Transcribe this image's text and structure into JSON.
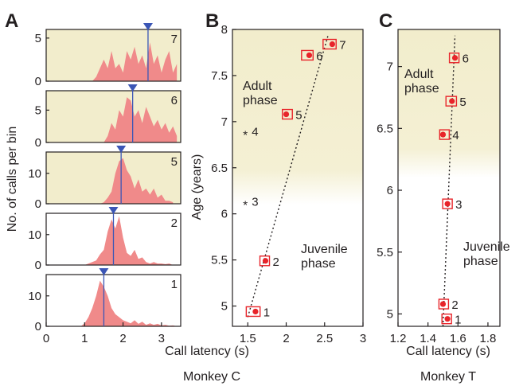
{
  "colors": {
    "adult_bg": "#f2edcc",
    "fill": "#f08a8a",
    "median": "#3b56b6",
    "box": "#e8242a",
    "dot": "#e8242a",
    "axis": "#231f20"
  },
  "chart_data": [
    {
      "panel": "A",
      "type": "area",
      "ylabel": "No. of calls per bin",
      "xlim": [
        0,
        3.5
      ],
      "x_ticks": [
        "0",
        "1",
        "2",
        "3"
      ],
      "note": "stacked histograms of call latency per age group",
      "histograms": [
        {
          "label": "7",
          "ylim": [
            0,
            6
          ],
          "y_ticks": [
            "0",
            "5"
          ],
          "median": 2.65,
          "x": [
            1.2,
            1.3,
            1.4,
            1.5,
            1.6,
            1.7,
            1.8,
            1.9,
            2.0,
            2.1,
            2.2,
            2.3,
            2.4,
            2.5,
            2.6,
            2.7,
            2.8,
            2.9,
            3.0,
            3.1,
            3.2,
            3.3,
            3.4
          ],
          "values": [
            0,
            0.5,
            1.5,
            2.5,
            1.5,
            3.5,
            1.5,
            2.0,
            1.0,
            3.5,
            2.5,
            4.0,
            2.0,
            3.0,
            1.5,
            4.5,
            2.0,
            3.0,
            1.0,
            2.5,
            3.5,
            1.0,
            2.0
          ]
        },
        {
          "label": "6",
          "ylim": [
            0,
            8
          ],
          "y_ticks": [
            "0",
            "5"
          ],
          "median": 2.25,
          "x": [
            1.5,
            1.6,
            1.7,
            1.8,
            1.9,
            2.0,
            2.1,
            2.2,
            2.3,
            2.4,
            2.5,
            2.6,
            2.7,
            2.8,
            2.9,
            3.0,
            3.1,
            3.2,
            3.3,
            3.4
          ],
          "values": [
            0,
            1.0,
            3.0,
            2.0,
            5.0,
            4.0,
            7.0,
            6.5,
            4.0,
            5.0,
            3.0,
            5.5,
            4.0,
            2.5,
            3.5,
            2.0,
            3.0,
            1.5,
            2.5,
            1.0
          ]
        },
        {
          "label": "5",
          "ylim": [
            0,
            17
          ],
          "y_ticks": [
            "0",
            "10"
          ],
          "median": 1.95,
          "x": [
            1.4,
            1.5,
            1.6,
            1.7,
            1.8,
            1.9,
            2.0,
            2.1,
            2.2,
            2.3,
            2.4,
            2.5,
            2.6,
            2.7,
            2.8,
            2.9,
            3.0,
            3.1,
            3.2,
            3.3
          ],
          "values": [
            0,
            0.5,
            2.0,
            4.0,
            10.0,
            14.0,
            15.0,
            11.0,
            9.0,
            5.0,
            8.0,
            4.0,
            5.0,
            3.0,
            5.0,
            2.0,
            3.0,
            1.0,
            1.0,
            0.5
          ]
        },
        {
          "label": "2",
          "ylim": [
            0,
            17
          ],
          "y_ticks": [
            "0",
            "10"
          ],
          "median": 1.75,
          "x": [
            1.0,
            1.1,
            1.2,
            1.3,
            1.4,
            1.5,
            1.6,
            1.7,
            1.8,
            1.9,
            2.0,
            2.1,
            2.2,
            2.3,
            2.4,
            2.5,
            2.6,
            2.7,
            2.8,
            2.9,
            3.0,
            3.1,
            3.2,
            3.3
          ],
          "values": [
            0,
            0.5,
            1.0,
            1.5,
            3.5,
            5.0,
            11.0,
            15.0,
            12.0,
            16.0,
            9.0,
            4.0,
            3.0,
            5.0,
            2.0,
            2.5,
            1.0,
            0.5,
            1.0,
            0.5,
            0.5,
            0.3,
            0.5,
            0
          ]
        },
        {
          "label": "1",
          "ylim": [
            0,
            17
          ],
          "y_ticks": [
            "0",
            "10"
          ],
          "median": 1.5,
          "x": [
            0.9,
            1.0,
            1.1,
            1.2,
            1.3,
            1.4,
            1.5,
            1.6,
            1.7,
            1.8,
            1.9,
            2.0,
            2.1,
            2.2,
            2.3,
            2.4,
            2.5,
            2.6,
            2.7,
            2.8,
            2.9,
            3.0,
            3.1,
            3.2,
            3.3,
            3.4
          ],
          "values": [
            0,
            1.0,
            3.0,
            6.0,
            10.0,
            15.0,
            13.0,
            10.0,
            6.0,
            4.0,
            3.0,
            2.0,
            1.5,
            1.0,
            2.0,
            0.8,
            1.5,
            0.5,
            1.0,
            0.5,
            0.8,
            0.3,
            0.5,
            0.2,
            0.3,
            0
          ]
        }
      ]
    },
    {
      "panel": "B",
      "type": "scatter",
      "title": "Monkey C",
      "xlabel": "Call latency (s)",
      "ylabel": "Age (years)",
      "xlim": [
        1.3,
        3.0
      ],
      "ylim": [
        4.78,
        8.0
      ],
      "x_ticks": [
        "1.5",
        "2",
        "2.5",
        "3"
      ],
      "y_ticks": [
        "5",
        "5.5",
        "6",
        "6.5",
        "7",
        "7.5",
        "8"
      ],
      "adult_region_from": 6.1,
      "adult_label": [
        "Adult",
        "phase"
      ],
      "juvenile_label": [
        "Juvenile",
        "phase"
      ],
      "points": [
        {
          "label": "1",
          "x": 1.6,
          "y": 4.94,
          "x_lo": 1.48,
          "x_hi": 1.66
        },
        {
          "label": "2",
          "x": 1.73,
          "y": 5.49,
          "x_lo": 1.68,
          "x_hi": 1.76
        },
        {
          "label": "5",
          "x": 2.0,
          "y": 7.08,
          "x_lo": 1.95,
          "x_hi": 2.08
        },
        {
          "label": "6",
          "x": 2.3,
          "y": 7.72,
          "x_lo": 2.2,
          "x_hi": 2.35
        },
        {
          "label": "7",
          "x": 2.6,
          "y": 7.84,
          "x_lo": 2.48,
          "x_hi": 2.65
        }
      ],
      "excluded_points": [
        {
          "label": "4",
          "x": 1.5,
          "y": 6.9
        },
        {
          "label": "3",
          "x": 1.5,
          "y": 6.14
        }
      ],
      "trend": [
        {
          "x": 1.5,
          "y": 4.88
        },
        {
          "x": 2.55,
          "y": 7.95
        }
      ]
    },
    {
      "panel": "C",
      "type": "scatter",
      "title": "Monkey T",
      "xlabel": "Call latency (s)",
      "xlim": [
        1.2,
        1.88
      ],
      "ylim": [
        4.9,
        7.3
      ],
      "x_ticks": [
        "1.2",
        "1.4",
        "1.6",
        "1.8"
      ],
      "y_ticks": [
        "5",
        "5.5",
        "6",
        "6.5",
        "7"
      ],
      "adult_region_from": 6.1,
      "adult_label": [
        "Adult",
        "phase"
      ],
      "juvenile_label": [
        "Juvenile",
        "phase"
      ],
      "points": [
        {
          "label": "1",
          "x": 1.53,
          "y": 4.96,
          "x_lo": 1.51,
          "x_hi": 1.54
        },
        {
          "label": "2",
          "x": 1.5,
          "y": 5.08,
          "x_lo": 1.48,
          "x_hi": 1.53
        },
        {
          "label": "3",
          "x": 1.53,
          "y": 5.89,
          "x_lo": 1.51,
          "x_hi": 1.55
        },
        {
          "label": "4",
          "x": 1.5,
          "y": 6.45,
          "x_lo": 1.48,
          "x_hi": 1.54
        },
        {
          "label": "5",
          "x": 1.56,
          "y": 6.72,
          "x_lo": 1.52,
          "x_hi": 1.59
        },
        {
          "label": "6",
          "x": 1.58,
          "y": 7.07,
          "x_lo": 1.56,
          "x_hi": 1.59
        }
      ],
      "trend": [
        {
          "x": 1.5,
          "y": 4.9
        },
        {
          "x": 1.58,
          "y": 7.25
        }
      ]
    }
  ]
}
